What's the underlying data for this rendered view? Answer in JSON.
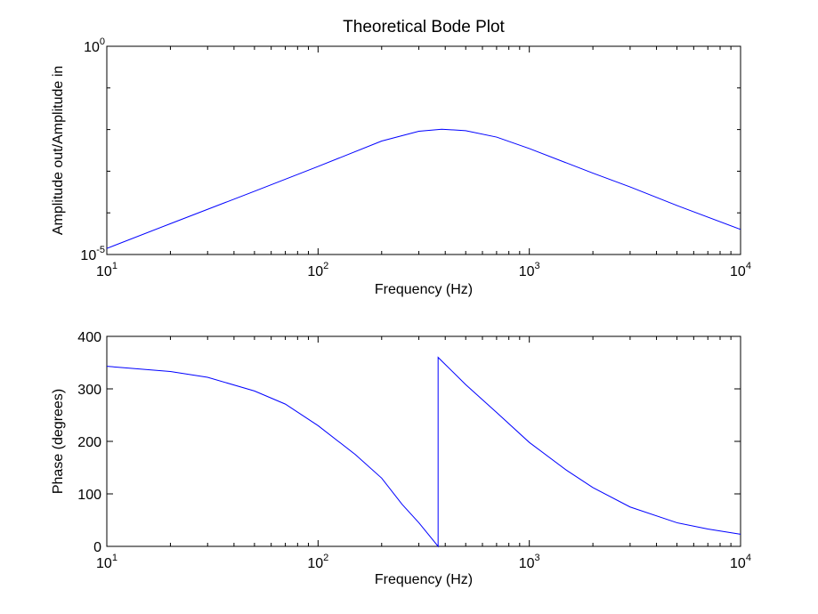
{
  "chart_data": [
    {
      "type": "line",
      "title": "Theoretical Bode Plot",
      "xlabel": "Frequency (Hz)",
      "ylabel": "Amplitude out/Amplitude in",
      "xscale": "log",
      "yscale": "log",
      "xlim": [
        10,
        10000
      ],
      "ylim": [
        1e-05,
        1
      ],
      "x_ticks": [
        {
          "base": "10",
          "exp": "1"
        },
        {
          "base": "10",
          "exp": "2"
        },
        {
          "base": "10",
          "exp": "3"
        },
        {
          "base": "10",
          "exp": "4"
        }
      ],
      "y_ticks": [
        {
          "base": "10",
          "exp": "-5"
        },
        {
          "base": "10",
          "exp": "0"
        }
      ],
      "grid": false,
      "series": [
        {
          "color": "#0000ff",
          "x": [
            10,
            20,
            50,
            100,
            200,
            300,
            385,
            500,
            700,
            1000,
            2000,
            3000,
            5000,
            10000
          ],
          "y": [
            1.4e-05,
            5.5e-05,
            0.00033,
            0.0013,
            0.0053,
            0.0091,
            0.0102,
            0.0094,
            0.0066,
            0.0035,
            0.0009,
            0.00042,
            0.00015,
            4e-05
          ]
        }
      ]
    },
    {
      "type": "line",
      "title": "",
      "xlabel": "Frequency (Hz)",
      "ylabel": "Phase (degrees)",
      "xscale": "log",
      "xlim": [
        10,
        10000
      ],
      "ylim": [
        0,
        400
      ],
      "x_ticks": [
        {
          "base": "10",
          "exp": "1"
        },
        {
          "base": "10",
          "exp": "2"
        },
        {
          "base": "10",
          "exp": "3"
        },
        {
          "base": "10",
          "exp": "4"
        }
      ],
      "y_ticks": [
        "0",
        "100",
        "200",
        "300",
        "400"
      ],
      "grid": false,
      "series": [
        {
          "color": "#0000ff",
          "x": [
            10,
            20,
            30,
            50,
            70,
            100,
            150,
            200,
            250,
            300,
            370,
            370,
            500,
            700,
            1000,
            1500,
            2000,
            3000,
            5000,
            7000,
            10000
          ],
          "y": [
            343,
            333,
            322,
            296,
            271,
            230,
            175,
            130,
            80,
            45,
            0,
            360,
            308,
            255,
            198,
            145,
            112,
            75,
            45,
            33,
            23
          ]
        }
      ]
    }
  ]
}
